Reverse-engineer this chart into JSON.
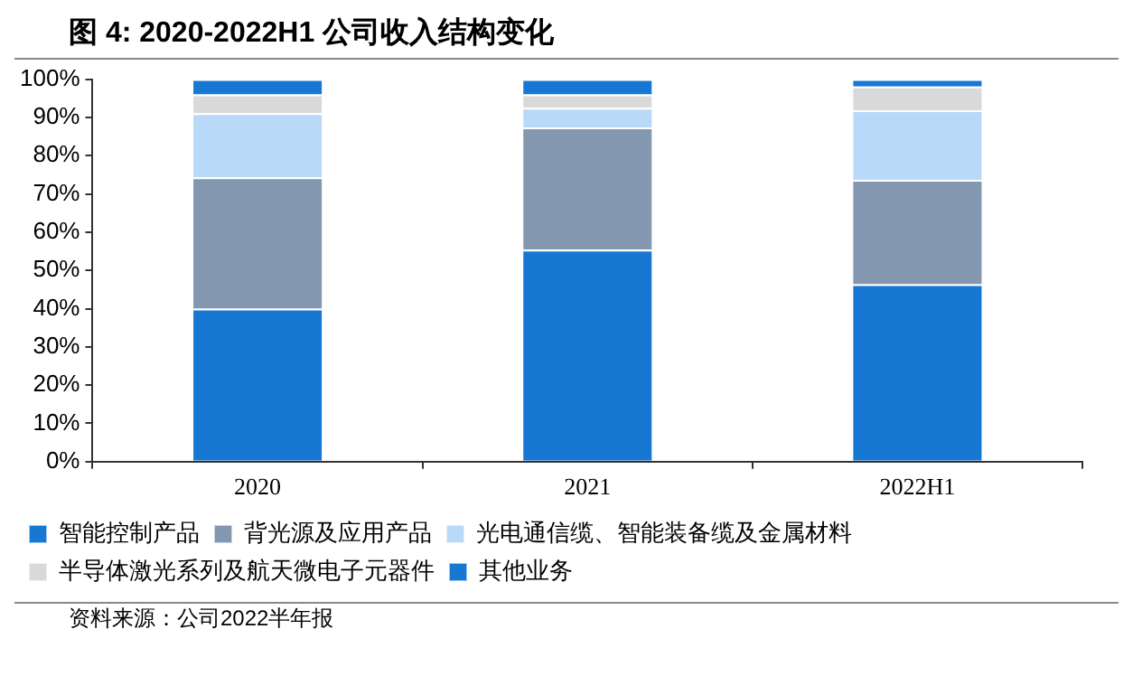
{
  "chart_data": {
    "type": "bar",
    "title": "图 4:  2020-2022H1 公司收入结构变化",
    "categories": [
      "2020",
      "2021",
      "2022H1"
    ],
    "stacked": true,
    "ylim": [
      0,
      100
    ],
    "yticks": [
      {
        "value": 0,
        "label": "0%"
      },
      {
        "value": 10,
        "label": "10%"
      },
      {
        "value": 20,
        "label": "20%"
      },
      {
        "value": 30,
        "label": "30%"
      },
      {
        "value": 40,
        "label": "40%"
      },
      {
        "value": 50,
        "label": "50%"
      },
      {
        "value": 60,
        "label": "60%"
      },
      {
        "value": 70,
        "label": "70%"
      },
      {
        "value": 80,
        "label": "80%"
      },
      {
        "value": 90,
        "label": "90%"
      },
      {
        "value": 100,
        "label": "100%"
      }
    ],
    "grid": false,
    "legend": "bottom",
    "series": [
      {
        "name": "智能控制产品",
        "color": "#1778d4",
        "values": [
          40,
          55.4,
          46.4
        ]
      },
      {
        "name": "背光源及应用产品",
        "color": "#8497b0",
        "values": [
          34.3,
          32,
          27.3
        ]
      },
      {
        "name": "光电通信缆、智能装备缆及金属材料",
        "color": "#b8d9f8",
        "values": [
          16.8,
          5.1,
          18.2
        ]
      },
      {
        "name": "半导体激光系列及航天微电子元器件",
        "color": "#d9d9d9",
        "values": [
          4.9,
          3.5,
          6.2
        ]
      },
      {
        "name": "其他业务",
        "color": "#1778d4",
        "values": [
          4,
          4,
          1.9
        ]
      }
    ],
    "annotations": [
      "资料来源：公司2022半年报"
    ]
  }
}
